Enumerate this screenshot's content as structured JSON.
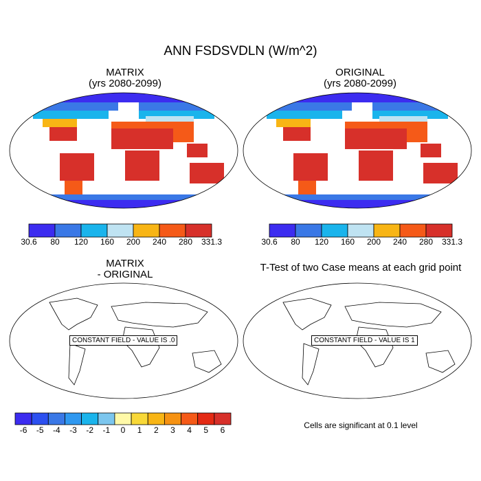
{
  "title": "ANN FSDSVDLN (W/m^2)",
  "panels": [
    {
      "title_line1": "MATRIX",
      "title_line2": "(yrs 2080-2099)"
    },
    {
      "title_line1": "ORIGINAL",
      "title_line2": "(yrs 2080-2099)"
    },
    {
      "title_line1": "MATRIX",
      "title_line2": "- ORIGINAL",
      "message": "CONSTANT FIELD - VALUE IS .0"
    },
    {
      "title_line1": "T-Test of two Case means at each grid point",
      "message": "CONSTANT FIELD - VALUE IS 1"
    }
  ],
  "colorbar_main": {
    "labels": [
      "30.6",
      "80",
      "120",
      "160",
      "200",
      "240",
      "280",
      "331.3"
    ],
    "colors": [
      "#3c2cf0",
      "#3a78e6",
      "#1ab4ec",
      "#bfe3f2",
      "#f8b515",
      "#f55a18",
      "#d7302a"
    ]
  },
  "colorbar_diff": {
    "labels": [
      "-6",
      "-5",
      "-4",
      "-3",
      "-2",
      "-1",
      "0",
      "1",
      "2",
      "3",
      "4",
      "5",
      "6"
    ],
    "colors": [
      "#3c2cf0",
      "#2c50f0",
      "#3a78e6",
      "#2f98f0",
      "#1ab4ec",
      "#7cc6ee",
      "#fff9a8",
      "#f8d838",
      "#f8b515",
      "#f69212",
      "#f55a18",
      "#e42a14",
      "#d7302a"
    ]
  },
  "significance_note": "Cells are significant at 0.1 level",
  "chart_data": {
    "type": "heatmap",
    "title": "ANN FSDSVDLN (W/m^2)",
    "units": "W/m^2",
    "projection": "Robinson",
    "panels": [
      {
        "name": "MATRIX",
        "period": "yrs 2080-2099",
        "min": 30.6,
        "max": 331.3,
        "levels": [
          30.6,
          80,
          120,
          160,
          200,
          240,
          280,
          331.3
        ]
      },
      {
        "name": "ORIGINAL",
        "period": "yrs 2080-2099",
        "min": 30.6,
        "max": 331.3,
        "levels": [
          30.6,
          80,
          120,
          160,
          200,
          240,
          280,
          331.3
        ]
      },
      {
        "name": "MATRIX - ORIGINAL",
        "constant_value": 0,
        "levels": [
          -6,
          -5,
          -4,
          -3,
          -2,
          -1,
          0,
          1,
          2,
          3,
          4,
          5,
          6
        ]
      },
      {
        "name": "T-Test of two Case means at each grid point",
        "constant_value": 1,
        "significance_level": 0.1
      }
    ]
  }
}
